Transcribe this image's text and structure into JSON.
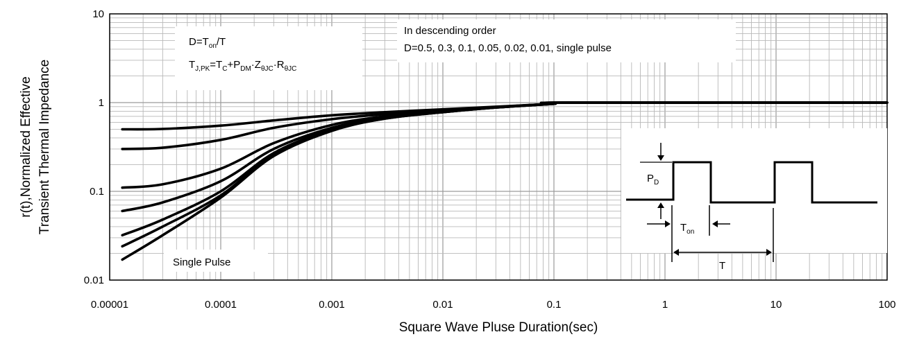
{
  "chart_data": {
    "type": "line",
    "title": "",
    "xlabel": "Square Wave Pluse Duration(sec)",
    "ylabel_line1": "r(t),Normalized Effective",
    "ylabel_line2": "Transient Thermal Impedance",
    "x_scale": "log",
    "y_scale": "log",
    "xlim": [
      1e-05,
      100
    ],
    "ylim": [
      0.01,
      10
    ],
    "grid": true,
    "x_ticks": [
      "0.00001",
      "0.0001",
      "0.001",
      "0.01",
      "0.1",
      "1",
      "10",
      "100"
    ],
    "y_ticks": [
      "10",
      "1",
      "0.1",
      "0.01"
    ],
    "annotations": {
      "formula_d": "D=T",
      "formula_d_sub": "on",
      "formula_d_tail": "/T",
      "formula_t_a": "T",
      "formula_t_a_sub": "J,PK",
      "formula_t_b": "=T",
      "formula_t_b_sub": "C",
      "formula_t_c": "+P",
      "formula_t_c_sub": "DM",
      "formula_t_d": "·Z",
      "formula_t_d_sub": "θJC",
      "formula_t_e": "·R",
      "formula_t_e_sub": "θJC",
      "order_title": "In descending order",
      "order_values": "D=0.5, 0.3, 0.1, 0.05, 0.02, 0.01, single pulse",
      "single_pulse": "Single Pulse"
    },
    "inset": {
      "pd": "P",
      "pd_sub": "D",
      "ton": "T",
      "ton_sub": "on",
      "period": "T"
    },
    "series": [
      {
        "label": "0.5",
        "x": [
          1.3e-05,
          3e-05,
          0.0001,
          0.0003,
          0.001,
          0.003,
          0.01,
          0.03,
          0.1,
          0.13,
          100
        ],
        "y": [
          0.5,
          0.505,
          0.55,
          0.63,
          0.72,
          0.78,
          0.84,
          0.9,
          0.97,
          1.0,
          1.0
        ]
      },
      {
        "label": "0.3",
        "x": [
          1.3e-05,
          3e-05,
          0.0001,
          0.0003,
          0.001,
          0.003,
          0.01,
          0.03,
          0.1,
          0.13,
          100
        ],
        "y": [
          0.3,
          0.31,
          0.38,
          0.52,
          0.65,
          0.74,
          0.81,
          0.89,
          0.97,
          1.0,
          1.0
        ]
      },
      {
        "label": "0.1",
        "x": [
          1.3e-05,
          3e-05,
          0.0001,
          0.0003,
          0.001,
          0.003,
          0.01,
          0.03,
          0.1,
          0.13,
          100
        ],
        "y": [
          0.11,
          0.12,
          0.18,
          0.35,
          0.56,
          0.7,
          0.8,
          0.89,
          0.97,
          1.0,
          1.0
        ]
      },
      {
        "label": "0.05",
        "x": [
          1.3e-05,
          3e-05,
          0.0001,
          0.0003,
          0.001,
          0.003,
          0.01,
          0.03,
          0.1,
          0.13,
          100
        ],
        "y": [
          0.06,
          0.075,
          0.13,
          0.3,
          0.52,
          0.68,
          0.79,
          0.89,
          0.97,
          1.0,
          1.0
        ]
      },
      {
        "label": "0.02",
        "x": [
          1.3e-05,
          3e-05,
          0.0001,
          0.0003,
          0.001,
          0.003,
          0.01,
          0.03,
          0.1,
          0.13,
          100
        ],
        "y": [
          0.032,
          0.048,
          0.1,
          0.27,
          0.5,
          0.67,
          0.78,
          0.88,
          0.97,
          1.0,
          1.0
        ]
      },
      {
        "label": "0.01",
        "x": [
          1.3e-05,
          3e-05,
          0.0001,
          0.0003,
          0.001,
          0.003,
          0.01,
          0.03,
          0.1,
          0.13,
          100
        ],
        "y": [
          0.024,
          0.04,
          0.09,
          0.26,
          0.49,
          0.66,
          0.78,
          0.88,
          0.97,
          1.0,
          1.0
        ]
      },
      {
        "label": "single pulse",
        "x": [
          1.3e-05,
          3e-05,
          0.0001,
          0.0003,
          0.001,
          0.003,
          0.01,
          0.03,
          0.1,
          0.13,
          100
        ],
        "y": [
          0.017,
          0.032,
          0.085,
          0.25,
          0.48,
          0.66,
          0.78,
          0.88,
          0.97,
          1.0,
          1.0
        ]
      }
    ]
  }
}
